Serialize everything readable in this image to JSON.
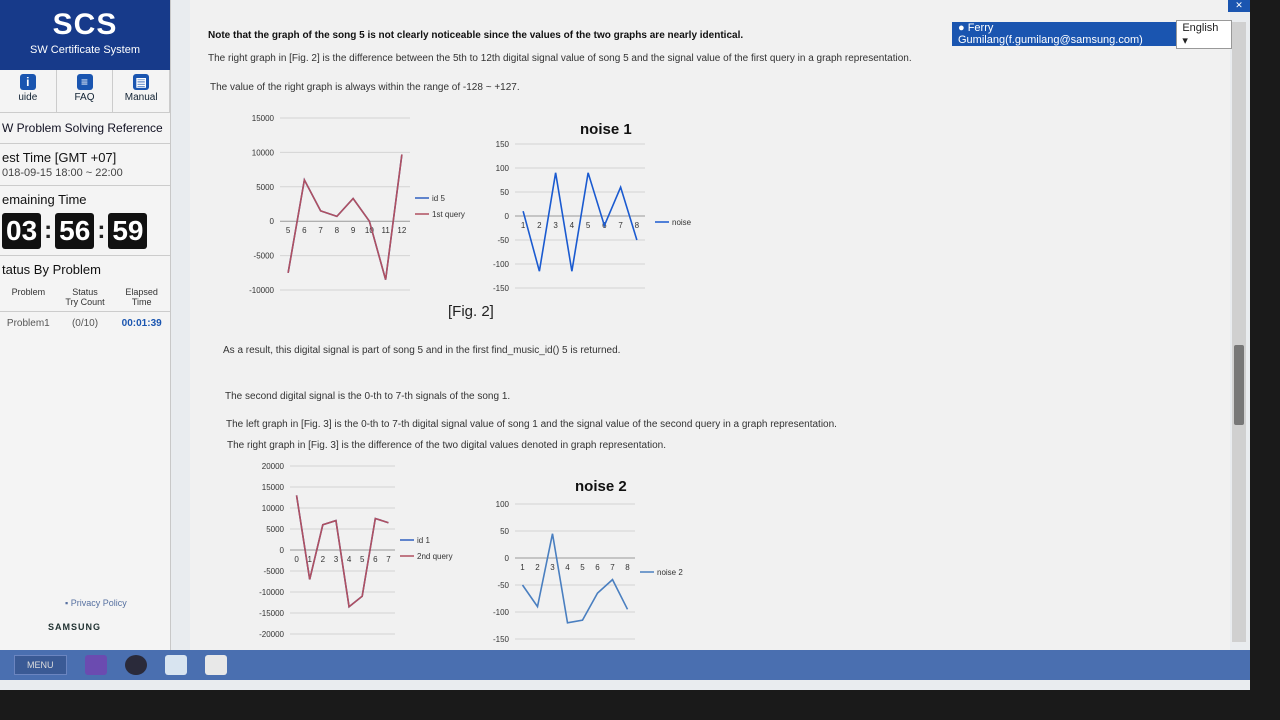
{
  "app": {
    "logo_title": "SCS",
    "logo_subtitle": "SW Certificate System"
  },
  "sidebar": {
    "icons": [
      {
        "label": "uide",
        "icon": "info-icon"
      },
      {
        "label": "FAQ",
        "icon": "faq-icon"
      },
      {
        "label": "Manual",
        "icon": "manual-icon"
      }
    ],
    "reference_link": "W Problem Solving Reference",
    "test_time_title": "est Time [GMT +07]",
    "test_time_value": "018-09-15 18:00 ~ 22:00",
    "remaining_title": "emaining Time",
    "timer": {
      "h": "03",
      "m": "56",
      "s": "59"
    },
    "status_title": "tatus By Problem",
    "status_headers": {
      "problem": "Problem",
      "status": "Status\nTry Count",
      "elapsed": "Elapsed\nTime"
    },
    "status_row": {
      "problem": "Problem1",
      "count": "(0/10)",
      "elapsed": "00:01:39"
    },
    "privacy": "Privacy Policy",
    "footer_brand": "SAMSUNG"
  },
  "user": {
    "name": "Ferry Gumilang(f.gumilang@samsung.com)",
    "language": "English"
  },
  "content": {
    "p1": "Note that the graph of the song 5 is not clearly noticeable since the values of the two graphs are nearly identical.",
    "p2": "The right graph in [Fig. 2] is the difference between the 5th to 12th digital signal value of song 5 and the signal value of the first query in a graph representation.",
    "p3": "The value of the right graph is always within the range of -128 ~ +127.",
    "fig2_caption": "[Fig. 2]",
    "p4": "As a result, this digital signal is part of song 5 and in the first find_music_id() 5 is returned.",
    "p5": "The second digital signal is the 0-th to 7-th signals of the song 1.",
    "p6": "The left graph in [Fig. 3] is the 0-th to 7-th digital signal value of song 1 and the signal value of the second query in a graph representation.",
    "p7": "The right graph in [Fig. 3] is the difference of the two digital values denoted in graph representation."
  },
  "taskbar": {
    "menu": "MENU"
  },
  "chart_data": [
    {
      "type": "line",
      "title": "",
      "categories": [
        "5",
        "6",
        "7",
        "8",
        "9",
        "10",
        "11",
        "12"
      ],
      "ylim": [
        -10000,
        15000
      ],
      "yticks": [
        "15000",
        "10000",
        "5000",
        "0",
        "-5000",
        "-10000"
      ],
      "series": [
        {
          "name": "id 5",
          "values": [
            -7500,
            6000,
            1500,
            700,
            3300,
            0,
            -8500,
            9700
          ],
          "color": "#3060c0"
        },
        {
          "name": "1st query",
          "values": [
            -7500,
            6000,
            1500,
            700,
            3300,
            0,
            -8500,
            9700
          ],
          "color": "#b05060"
        }
      ]
    },
    {
      "type": "line",
      "title": "noise 1",
      "categories": [
        "1",
        "2",
        "3",
        "4",
        "5",
        "6",
        "7",
        "8"
      ],
      "ylim": [
        -150,
        150
      ],
      "yticks": [
        "150",
        "100",
        "50",
        "0",
        "-50",
        "-100",
        "-150"
      ],
      "series": [
        {
          "name": "noise",
          "values": [
            10,
            -115,
            90,
            -115,
            90,
            -20,
            60,
            -50
          ],
          "color": "#1a5ad0"
        }
      ]
    },
    {
      "type": "line",
      "title": "",
      "categories": [
        "0",
        "1",
        "2",
        "3",
        "4",
        "5",
        "6",
        "7"
      ],
      "ylim": [
        -20000,
        20000
      ],
      "yticks": [
        "20000",
        "15000",
        "10000",
        "5000",
        "0",
        "-5000",
        "-10000",
        "-15000",
        "-20000"
      ],
      "series": [
        {
          "name": "id 1",
          "values": [
            13000,
            -7000,
            6000,
            7000,
            -13500,
            -11000,
            7500,
            6500
          ],
          "color": "#3060c0"
        },
        {
          "name": "2nd query",
          "values": [
            13000,
            -7000,
            6000,
            7000,
            -13500,
            -11000,
            7500,
            6500
          ],
          "color": "#b05060"
        }
      ]
    },
    {
      "type": "line",
      "title": "noise 2",
      "categories": [
        "1",
        "2",
        "3",
        "4",
        "5",
        "6",
        "7",
        "8"
      ],
      "ylim": [
        -150,
        100
      ],
      "yticks": [
        "100",
        "50",
        "0",
        "-50",
        "-100",
        "-150"
      ],
      "series": [
        {
          "name": "noise 2",
          "values": [
            -50,
            -90,
            45,
            -120,
            -115,
            -65,
            -40,
            -95
          ],
          "color": "#4a7fc0"
        }
      ]
    }
  ]
}
